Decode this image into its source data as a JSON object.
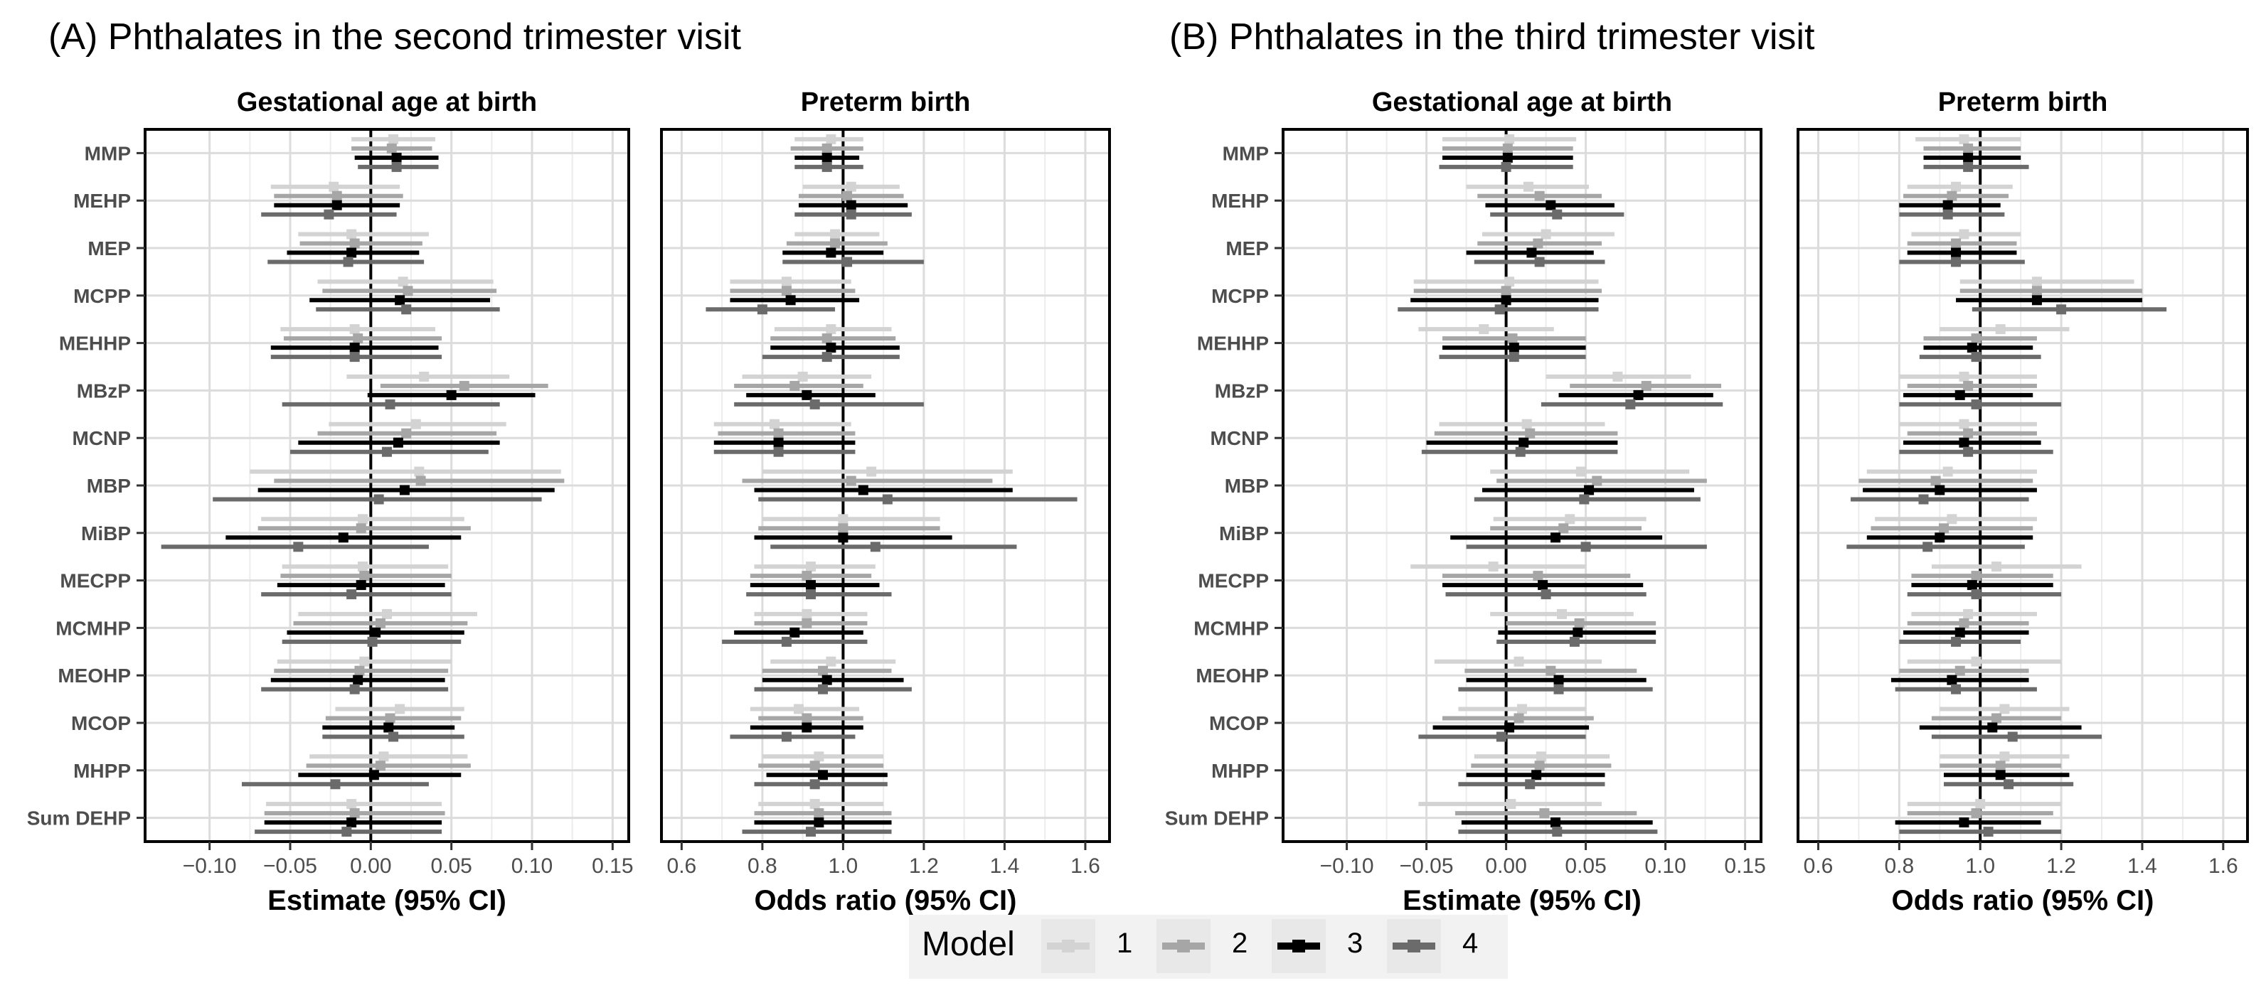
{
  "sections": [
    {
      "title": "(A) Phthalates in the second trimester visit"
    },
    {
      "title": "(B) Phthalates in the third trimester visit"
    }
  ],
  "legend": {
    "title": "Model",
    "items": [
      {
        "label": "1",
        "color": "#d3d3d3"
      },
      {
        "label": "2",
        "color": "#a6a6a6"
      },
      {
        "label": "3",
        "color": "#000000"
      },
      {
        "label": "4",
        "color": "#6b6b6b"
      }
    ]
  },
  "chart_data": [
    {
      "type": "forest",
      "title": "Gestational age at birth",
      "xlabel": "Estimate (95% CI)",
      "xlim": [
        -0.14,
        0.16
      ],
      "xticks": [
        -0.1,
        -0.05,
        0.0,
        0.05,
        0.1,
        0.15
      ],
      "xtick_labels": [
        "−0.10",
        "−0.05",
        "0.00",
        "0.05",
        "0.10",
        "0.15"
      ],
      "reference": 0,
      "categories": [
        "MMP",
        "MEHP",
        "MEP",
        "MCPP",
        "MEHHP",
        "MBzP",
        "MCNP",
        "MBP",
        "MiBP",
        "MECPP",
        "MCMHP",
        "MEOHP",
        "MCOP",
        "MHPP",
        "Sum DEHP"
      ],
      "series": [
        {
          "name": "1",
          "estimate": [
            0.014,
            -0.023,
            -0.012,
            0.02,
            -0.01,
            0.033,
            0.028,
            0.03,
            -0.005,
            -0.005,
            0.01,
            -0.004,
            0.018,
            0.008,
            -0.012
          ],
          "lower": [
            -0.012,
            -0.062,
            -0.045,
            -0.033,
            -0.056,
            -0.015,
            -0.026,
            -0.075,
            -0.068,
            -0.055,
            -0.045,
            -0.058,
            -0.022,
            -0.038,
            -0.065
          ],
          "upper": [
            0.04,
            0.018,
            0.036,
            0.076,
            0.04,
            0.086,
            0.084,
            0.118,
            0.058,
            0.048,
            0.066,
            0.05,
            0.058,
            0.06,
            0.044
          ]
        },
        {
          "name": "2",
          "estimate": [
            0.013,
            -0.021,
            -0.01,
            0.023,
            -0.008,
            0.058,
            0.022,
            0.031,
            -0.006,
            -0.004,
            0.006,
            -0.007,
            0.012,
            0.006,
            -0.01
          ],
          "lower": [
            -0.012,
            -0.06,
            -0.044,
            -0.03,
            -0.054,
            0.006,
            -0.033,
            -0.06,
            -0.07,
            -0.056,
            -0.048,
            -0.06,
            -0.028,
            -0.04,
            -0.066
          ],
          "upper": [
            0.038,
            0.02,
            0.032,
            0.078,
            0.044,
            0.11,
            0.078,
            0.12,
            0.062,
            0.05,
            0.06,
            0.048,
            0.056,
            0.062,
            0.046
          ]
        },
        {
          "name": "3",
          "estimate": [
            0.016,
            -0.021,
            -0.012,
            0.018,
            -0.01,
            0.05,
            0.017,
            0.021,
            -0.017,
            -0.006,
            0.003,
            -0.008,
            0.011,
            0.002,
            -0.012
          ],
          "lower": [
            -0.01,
            -0.06,
            -0.052,
            -0.038,
            -0.062,
            -0.002,
            -0.045,
            -0.07,
            -0.09,
            -0.058,
            -0.052,
            -0.062,
            -0.03,
            -0.045,
            -0.066
          ],
          "upper": [
            0.042,
            0.018,
            0.03,
            0.074,
            0.042,
            0.102,
            0.08,
            0.114,
            0.056,
            0.046,
            0.058,
            0.046,
            0.052,
            0.056,
            0.044
          ]
        },
        {
          "name": "4",
          "estimate": [
            0.016,
            -0.026,
            -0.014,
            0.022,
            -0.01,
            0.012,
            0.01,
            0.005,
            -0.045,
            -0.012,
            0.001,
            -0.01,
            0.014,
            -0.022,
            -0.015
          ],
          "lower": [
            -0.008,
            -0.068,
            -0.064,
            -0.034,
            -0.062,
            -0.055,
            -0.05,
            -0.098,
            -0.13,
            -0.068,
            -0.055,
            -0.068,
            -0.03,
            -0.08,
            -0.072
          ],
          "upper": [
            0.042,
            0.016,
            0.033,
            0.08,
            0.044,
            0.08,
            0.073,
            0.106,
            0.036,
            0.05,
            0.056,
            0.048,
            0.058,
            0.036,
            0.044
          ]
        }
      ]
    },
    {
      "type": "forest",
      "title": "Preterm birth",
      "xlabel": "Odds ratio (95% CI)",
      "xlim": [
        0.55,
        1.66
      ],
      "xticks": [
        0.6,
        0.8,
        1.0,
        1.2,
        1.4,
        1.6
      ],
      "xtick_labels": [
        "0.6",
        "0.8",
        "1.0",
        "1.2",
        "1.4",
        "1.6"
      ],
      "reference": 1,
      "categories": [
        "MMP",
        "MEHP",
        "MEP",
        "MCPP",
        "MEHHP",
        "MBzP",
        "MCNP",
        "MBP",
        "MiBP",
        "MECPP",
        "MCMHP",
        "MEOHP",
        "MCOP",
        "MHPP",
        "Sum DEHP"
      ],
      "series": [
        {
          "name": "1",
          "estimate": [
            0.97,
            1.02,
            0.98,
            0.86,
            0.97,
            0.9,
            0.83,
            1.07,
            1.0,
            0.92,
            0.91,
            0.97,
            0.89,
            0.94,
            0.93
          ],
          "lower": [
            0.88,
            0.9,
            0.88,
            0.72,
            0.83,
            0.75,
            0.68,
            0.8,
            0.8,
            0.78,
            0.78,
            0.82,
            0.77,
            0.8,
            0.79
          ],
          "upper": [
            1.05,
            1.14,
            1.09,
            1.02,
            1.12,
            1.07,
            1.02,
            1.42,
            1.24,
            1.08,
            1.06,
            1.13,
            1.04,
            1.1,
            1.1
          ]
        },
        {
          "name": "2",
          "estimate": [
            0.96,
            1.01,
            0.98,
            0.86,
            0.96,
            0.88,
            0.84,
            1.02,
            1.0,
            0.91,
            0.91,
            0.95,
            0.91,
            0.93,
            0.94
          ],
          "lower": [
            0.87,
            0.89,
            0.86,
            0.72,
            0.82,
            0.73,
            0.69,
            0.75,
            0.79,
            0.77,
            0.78,
            0.8,
            0.79,
            0.79,
            0.78
          ],
          "upper": [
            1.05,
            1.15,
            1.11,
            1.03,
            1.13,
            1.05,
            1.03,
            1.37,
            1.24,
            1.07,
            1.06,
            1.12,
            1.05,
            1.1,
            1.12
          ]
        },
        {
          "name": "3",
          "estimate": [
            0.96,
            1.02,
            0.97,
            0.87,
            0.97,
            0.91,
            0.84,
            1.05,
            1.0,
            0.92,
            0.88,
            0.96,
            0.91,
            0.95,
            0.94
          ],
          "lower": [
            0.88,
            0.89,
            0.85,
            0.72,
            0.82,
            0.76,
            0.68,
            0.78,
            0.78,
            0.77,
            0.73,
            0.8,
            0.77,
            0.81,
            0.78
          ],
          "upper": [
            1.04,
            1.16,
            1.1,
            1.04,
            1.14,
            1.08,
            1.03,
            1.42,
            1.27,
            1.09,
            1.05,
            1.15,
            1.05,
            1.11,
            1.12
          ]
        },
        {
          "name": "4",
          "estimate": [
            0.96,
            1.02,
            1.01,
            0.8,
            0.96,
            0.93,
            0.84,
            1.11,
            1.08,
            0.92,
            0.86,
            0.95,
            0.86,
            0.93,
            0.92
          ],
          "lower": [
            0.88,
            0.88,
            0.85,
            0.66,
            0.8,
            0.73,
            0.68,
            0.79,
            0.82,
            0.76,
            0.7,
            0.78,
            0.72,
            0.78,
            0.75
          ],
          "upper": [
            1.05,
            1.17,
            1.2,
            0.98,
            1.14,
            1.2,
            1.03,
            1.58,
            1.43,
            1.12,
            1.06,
            1.17,
            1.03,
            1.11,
            1.12
          ]
        }
      ]
    },
    {
      "type": "forest",
      "title": "Gestational age at birth",
      "xlabel": "Estimate (95% CI)",
      "xlim": [
        -0.14,
        0.16
      ],
      "xticks": [
        -0.1,
        -0.05,
        0.0,
        0.05,
        0.1,
        0.15
      ],
      "xtick_labels": [
        "−0.10",
        "−0.05",
        "0.00",
        "0.05",
        "0.10",
        "0.15"
      ],
      "reference": 0,
      "categories": [
        "MMP",
        "MEHP",
        "MEP",
        "MCPP",
        "MEHHP",
        "MBzP",
        "MCNP",
        "MBP",
        "MiBP",
        "MECPP",
        "MCMHP",
        "MEOHP",
        "MCOP",
        "MHPP",
        "Sum DEHP"
      ],
      "series": [
        {
          "name": "1",
          "estimate": [
            0.002,
            0.014,
            0.025,
            0.002,
            -0.014,
            0.07,
            0.013,
            0.047,
            0.04,
            -0.008,
            0.035,
            0.008,
            0.01,
            0.022,
            0.003
          ],
          "lower": [
            -0.04,
            -0.025,
            -0.015,
            -0.058,
            -0.055,
            0.025,
            -0.042,
            -0.01,
            -0.008,
            -0.06,
            -0.01,
            -0.045,
            -0.03,
            -0.02,
            -0.055
          ],
          "upper": [
            0.044,
            0.052,
            0.068,
            0.058,
            0.03,
            0.116,
            0.062,
            0.115,
            0.088,
            0.05,
            0.08,
            0.06,
            0.05,
            0.065,
            0.06
          ]
        },
        {
          "name": "2",
          "estimate": [
            0.001,
            0.021,
            0.02,
            0.0,
            0.004,
            0.088,
            0.015,
            0.057,
            0.036,
            0.02,
            0.046,
            0.028,
            0.008,
            0.021,
            0.024
          ],
          "lower": [
            -0.04,
            -0.018,
            -0.018,
            -0.058,
            -0.04,
            0.04,
            -0.045,
            -0.006,
            -0.01,
            -0.04,
            0.0,
            -0.026,
            -0.04,
            -0.022,
            -0.032
          ],
          "upper": [
            0.042,
            0.06,
            0.06,
            0.06,
            0.05,
            0.135,
            0.07,
            0.126,
            0.085,
            0.078,
            0.094,
            0.082,
            0.055,
            0.066,
            0.082
          ]
        },
        {
          "name": "3",
          "estimate": [
            0.001,
            0.028,
            0.016,
            0.0,
            0.005,
            0.083,
            0.011,
            0.052,
            0.031,
            0.023,
            0.045,
            0.033,
            0.002,
            0.019,
            0.031
          ],
          "lower": [
            -0.04,
            -0.013,
            -0.025,
            -0.06,
            -0.04,
            0.033,
            -0.05,
            -0.015,
            -0.035,
            -0.04,
            -0.005,
            -0.025,
            -0.046,
            -0.025,
            -0.028
          ],
          "upper": [
            0.042,
            0.068,
            0.055,
            0.058,
            0.05,
            0.13,
            0.07,
            0.118,
            0.098,
            0.086,
            0.094,
            0.088,
            0.052,
            0.062,
            0.092
          ]
        },
        {
          "name": "4",
          "estimate": [
            0.0,
            0.032,
            0.021,
            -0.004,
            0.005,
            0.078,
            0.009,
            0.049,
            0.05,
            0.025,
            0.043,
            0.033,
            -0.003,
            0.015,
            0.032
          ],
          "lower": [
            -0.042,
            -0.01,
            -0.02,
            -0.068,
            -0.042,
            0.022,
            -0.053,
            -0.02,
            -0.025,
            -0.038,
            -0.006,
            -0.03,
            -0.055,
            -0.03,
            -0.03
          ],
          "upper": [
            0.042,
            0.074,
            0.062,
            0.058,
            0.05,
            0.136,
            0.07,
            0.122,
            0.126,
            0.088,
            0.094,
            0.092,
            0.05,
            0.062,
            0.095
          ]
        }
      ]
    },
    {
      "type": "forest",
      "title": "Preterm birth",
      "xlabel": "Odds ratio (95% CI)",
      "xlim": [
        0.55,
        1.66
      ],
      "xticks": [
        0.6,
        0.8,
        1.0,
        1.2,
        1.4,
        1.6
      ],
      "xtick_labels": [
        "0.6",
        "0.8",
        "1.0",
        "1.2",
        "1.4",
        "1.6"
      ],
      "reference": 1,
      "categories": [
        "MMP",
        "MEHP",
        "MEP",
        "MCPP",
        "MEHHP",
        "MBzP",
        "MCNP",
        "MBP",
        "MiBP",
        "MECPP",
        "MCMHP",
        "MEOHP",
        "MCOP",
        "MHPP",
        "Sum DEHP"
      ],
      "series": [
        {
          "name": "1",
          "estimate": [
            0.96,
            0.94,
            0.96,
            1.14,
            1.05,
            0.96,
            0.96,
            0.92,
            0.93,
            1.04,
            0.97,
            0.99,
            1.06,
            1.06,
            1.0
          ],
          "lower": [
            0.84,
            0.82,
            0.83,
            0.95,
            0.9,
            0.8,
            0.8,
            0.72,
            0.74,
            0.88,
            0.83,
            0.82,
            0.9,
            0.9,
            0.82
          ],
          "upper": [
            1.1,
            1.08,
            1.1,
            1.38,
            1.22,
            1.14,
            1.14,
            1.14,
            1.14,
            1.25,
            1.14,
            1.2,
            1.22,
            1.22,
            1.2
          ]
        },
        {
          "name": "2",
          "estimate": [
            0.97,
            0.93,
            0.94,
            1.14,
            0.99,
            0.97,
            0.97,
            0.89,
            0.91,
            0.99,
            0.96,
            0.95,
            1.04,
            1.05,
            0.99
          ],
          "lower": [
            0.86,
            0.81,
            0.82,
            0.95,
            0.86,
            0.82,
            0.82,
            0.7,
            0.73,
            0.83,
            0.82,
            0.8,
            0.88,
            0.9,
            0.82
          ],
          "upper": [
            1.1,
            1.07,
            1.09,
            1.4,
            1.14,
            1.14,
            1.14,
            1.13,
            1.13,
            1.18,
            1.12,
            1.12,
            1.2,
            1.2,
            1.18
          ]
        },
        {
          "name": "3",
          "estimate": [
            0.97,
            0.92,
            0.94,
            1.14,
            0.98,
            0.95,
            0.96,
            0.9,
            0.9,
            0.98,
            0.95,
            0.93,
            1.03,
            1.05,
            0.96
          ],
          "lower": [
            0.86,
            0.8,
            0.82,
            0.94,
            0.86,
            0.81,
            0.81,
            0.71,
            0.72,
            0.83,
            0.81,
            0.78,
            0.85,
            0.91,
            0.79
          ],
          "upper": [
            1.1,
            1.05,
            1.09,
            1.4,
            1.13,
            1.13,
            1.15,
            1.14,
            1.13,
            1.18,
            1.12,
            1.12,
            1.25,
            1.22,
            1.15
          ]
        },
        {
          "name": "4",
          "estimate": [
            0.97,
            0.92,
            0.94,
            1.2,
            0.99,
            0.99,
            0.97,
            0.86,
            0.87,
            0.99,
            0.94,
            0.94,
            1.08,
            1.07,
            1.02
          ],
          "lower": [
            0.86,
            0.8,
            0.8,
            0.98,
            0.85,
            0.8,
            0.8,
            0.68,
            0.67,
            0.82,
            0.8,
            0.79,
            0.88,
            0.91,
            0.8
          ],
          "upper": [
            1.12,
            1.06,
            1.11,
            1.46,
            1.15,
            1.2,
            1.18,
            1.12,
            1.11,
            1.2,
            1.1,
            1.14,
            1.3,
            1.23,
            1.2
          ]
        }
      ]
    }
  ]
}
